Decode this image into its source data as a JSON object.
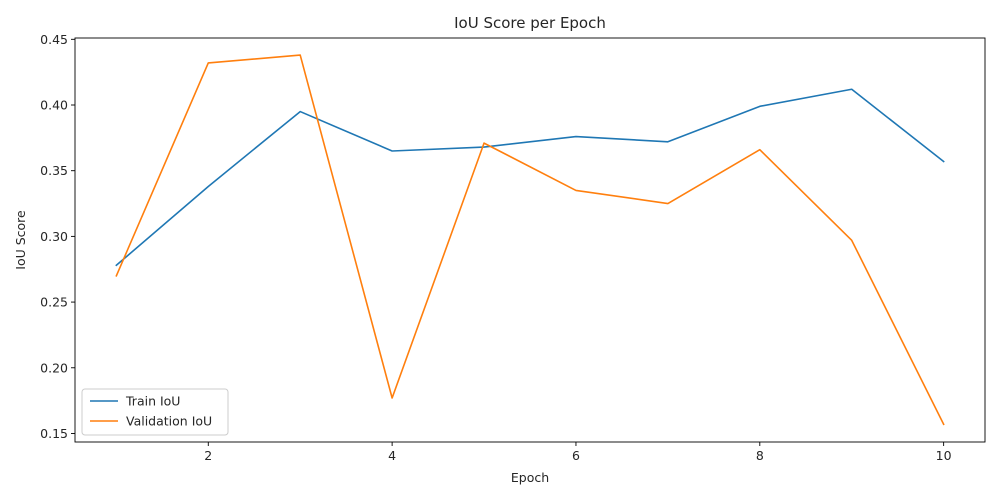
{
  "chart_data": {
    "type": "line",
    "title": "IoU Score per Epoch",
    "xlabel": "Epoch",
    "ylabel": "IoU Score",
    "xlim": [
      0.55,
      10.45
    ],
    "ylim": [
      0.1435,
      0.451
    ],
    "xticks": [
      2,
      4,
      6,
      8,
      10
    ],
    "yticks": [
      0.15,
      0.2,
      0.25,
      0.3,
      0.35,
      0.4,
      0.45
    ],
    "ytick_labels": [
      "0.15",
      "0.20",
      "0.25",
      "0.30",
      "0.35",
      "0.40",
      "0.45"
    ],
    "grid": false,
    "legend_position": "bottom-left",
    "x": [
      1,
      2,
      3,
      4,
      5,
      6,
      7,
      8,
      9,
      10
    ],
    "series": [
      {
        "name": "Train IoU",
        "color": "#1f77b4",
        "values": [
          0.278,
          0.338,
          0.395,
          0.365,
          0.368,
          0.376,
          0.372,
          0.399,
          0.412,
          0.357
        ]
      },
      {
        "name": "Validation IoU",
        "color": "#ff7f0e",
        "values": [
          0.27,
          0.432,
          0.438,
          0.177,
          0.371,
          0.335,
          0.325,
          0.366,
          0.297,
          0.157
        ]
      }
    ]
  }
}
